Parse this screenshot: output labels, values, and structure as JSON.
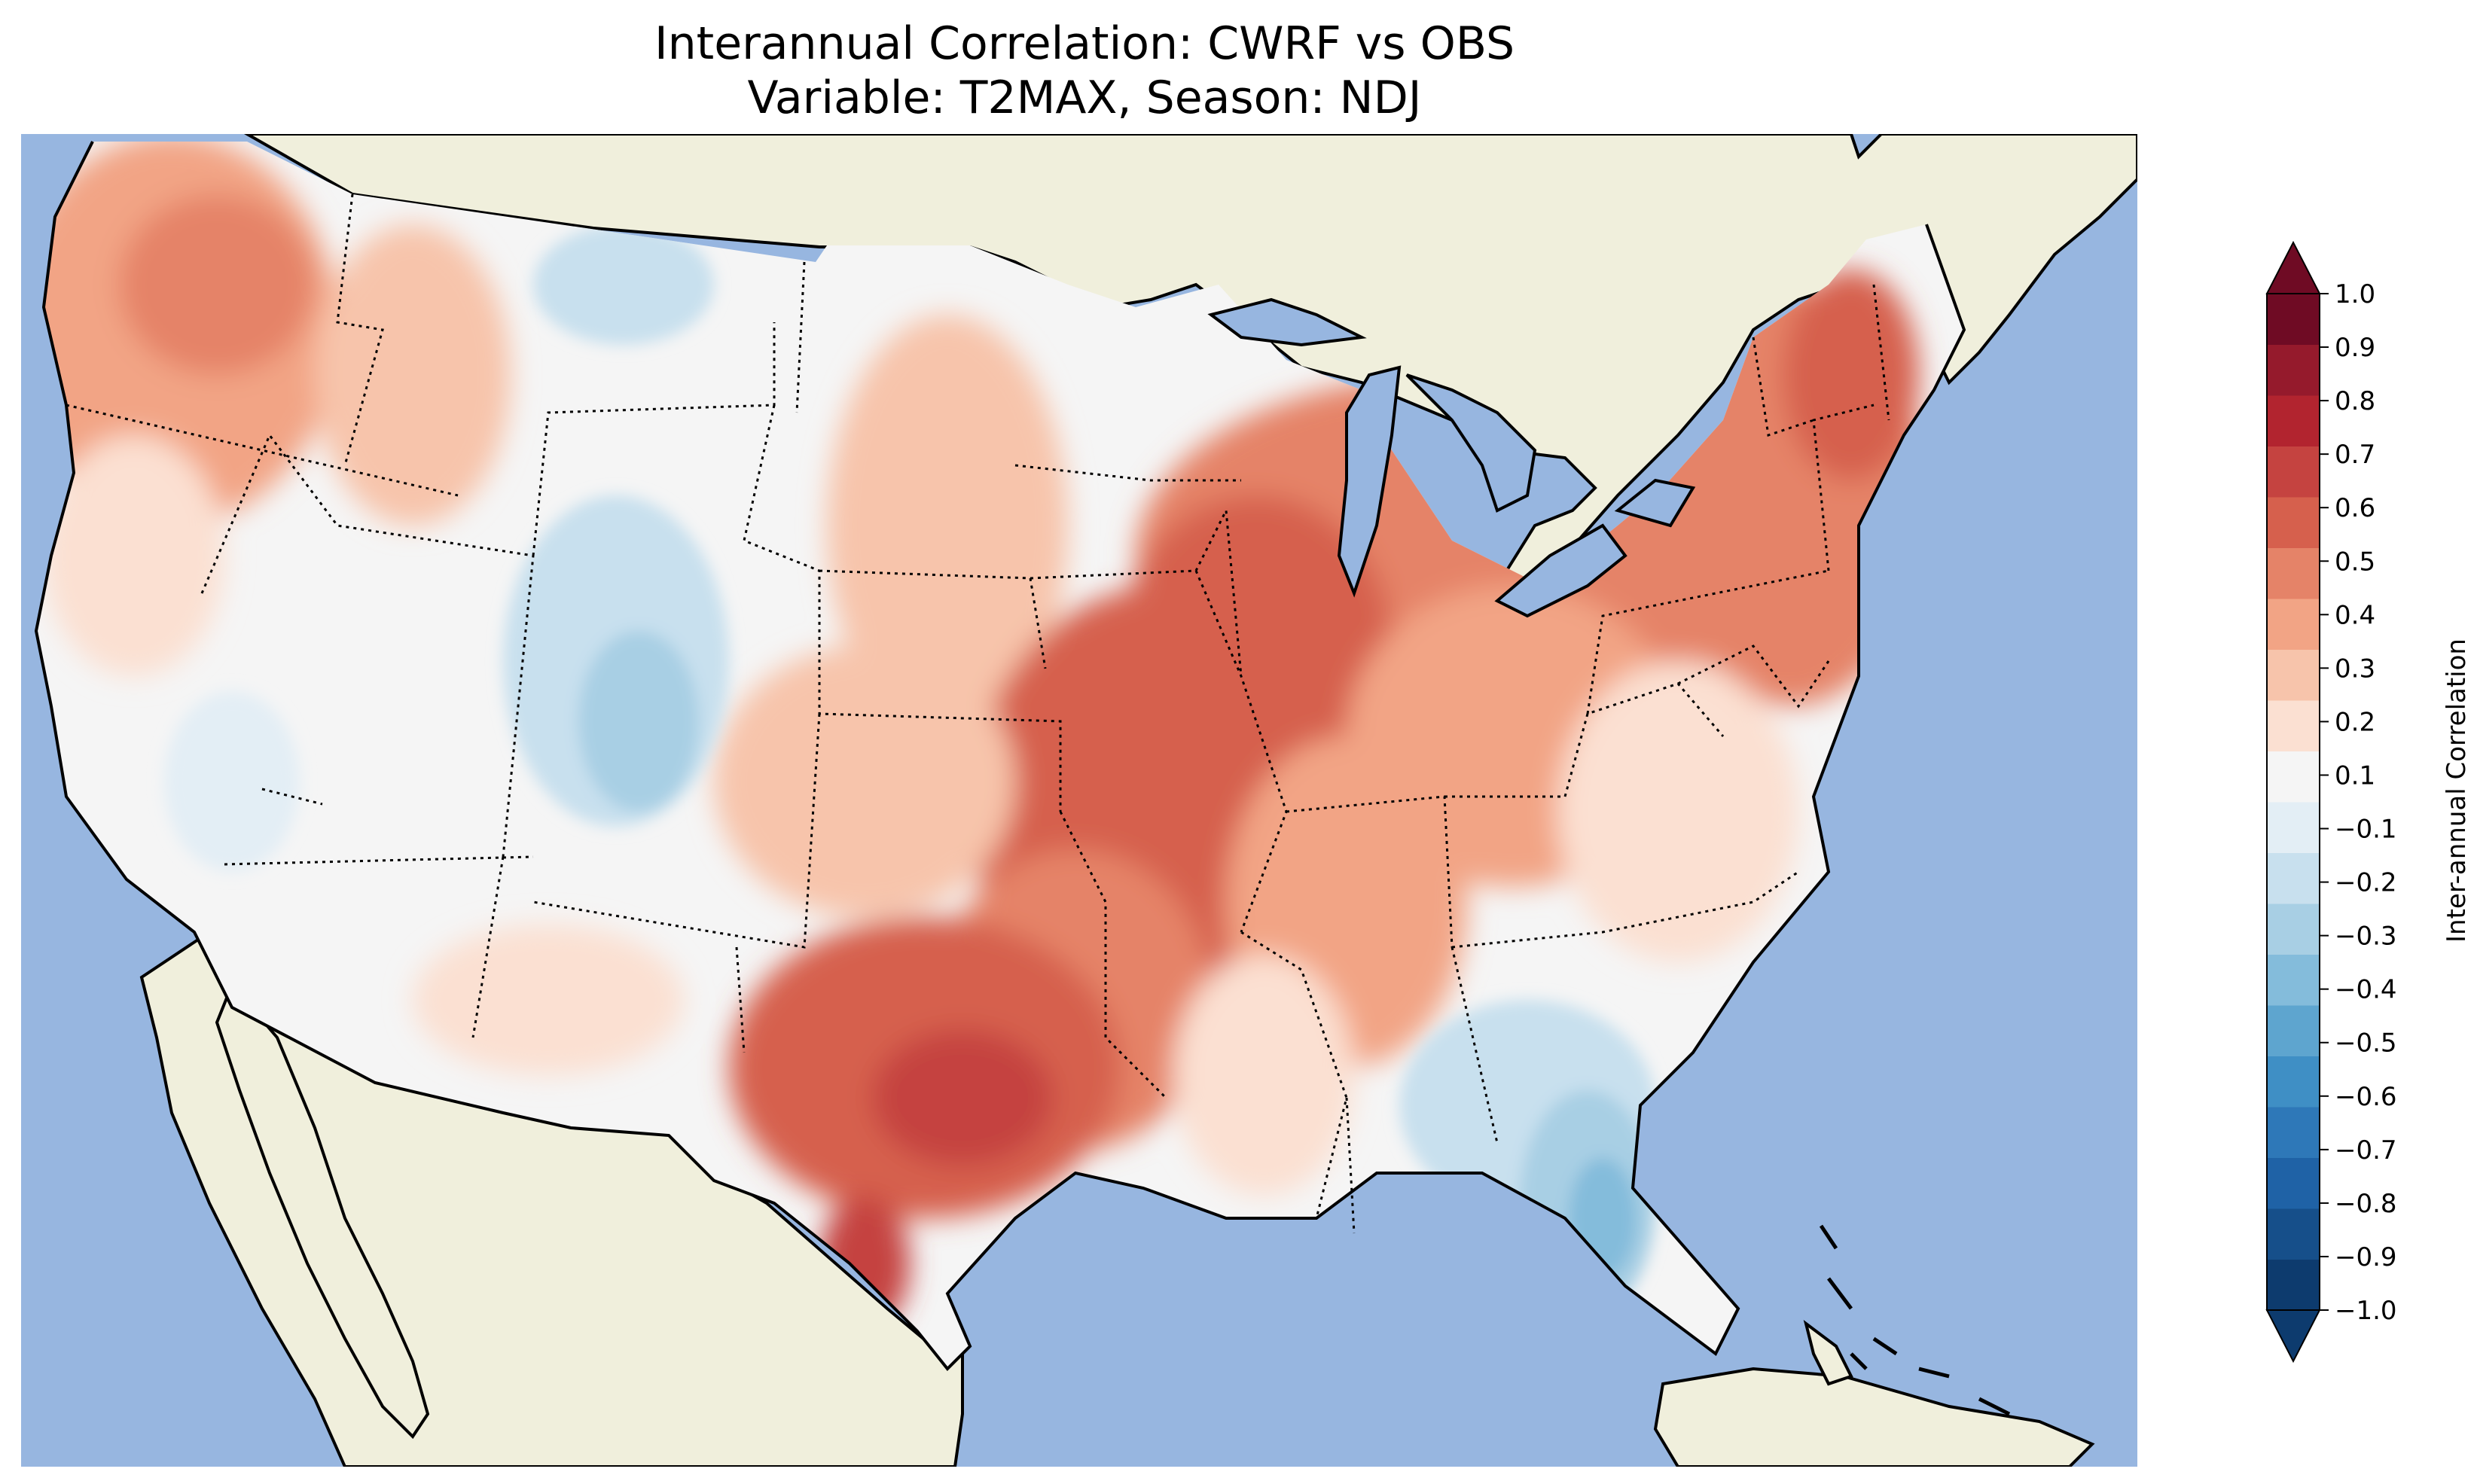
{
  "title": {
    "line1": "Interannual Correlation: CWRF vs OBS",
    "line2": "Variable: T2MAX, Season: NDJ"
  },
  "colorbar": {
    "label": "Inter-annual Correlation",
    "tick_labels": [
      "−1.0",
      "−0.9",
      "−0.8",
      "−0.7",
      "−0.6",
      "−0.5",
      "−0.4",
      "−0.3",
      "−0.2",
      "−0.1",
      "0.1",
      "0.2",
      "0.3",
      "0.4",
      "0.5",
      "0.6",
      "0.7",
      "0.8",
      "0.9",
      "1.0"
    ],
    "colors": [
      "#0d3b6e",
      "#164f8a",
      "#1f62a6",
      "#2e78b8",
      "#3f8fc5",
      "#5ea5cf",
      "#84bcdb",
      "#a8cfe4",
      "#c8e0ee",
      "#e3eef5",
      "#f5f5f5",
      "#fbe0d2",
      "#f7c4ab",
      "#f2a485",
      "#e58368",
      "#d6604d",
      "#c54340",
      "#b2242f",
      "#951a2c",
      "#6f0b24"
    ],
    "extend": "both"
  },
  "map_colors": {
    "ocean": "#97b6e0",
    "land": "#f0efdc",
    "coast": "#000000",
    "state_border": "#000000"
  }
}
